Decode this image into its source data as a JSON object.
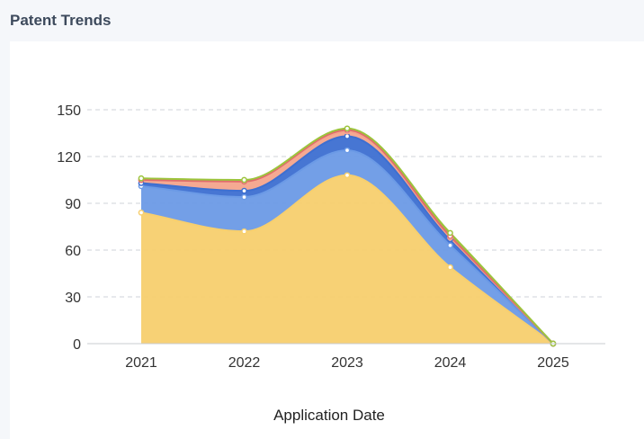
{
  "panel": {
    "title": "Patent Trends"
  },
  "chart_data": {
    "type": "area",
    "stacked": true,
    "smooth": true,
    "title": "",
    "xlabel": "Application Date",
    "ylabel": "",
    "x": [
      "2021",
      "2022",
      "2023",
      "2024",
      "2025"
    ],
    "ylim": [
      0,
      150
    ],
    "yticks": [
      "0",
      "30",
      "60",
      "90",
      "120",
      "150"
    ],
    "grid": true,
    "legend": "none",
    "series": [
      {
        "color": "#f7cf6e",
        "values": [
          84,
          72,
          108,
          49,
          0
        ]
      },
      {
        "color": "#6b9ae6",
        "values": [
          17,
          22,
          16,
          14,
          0
        ]
      },
      {
        "color": "#3d6fd1",
        "values": [
          2,
          4,
          9,
          4,
          0
        ]
      },
      {
        "color": "#f4a48c",
        "values": [
          2,
          6,
          3,
          1,
          0
        ]
      },
      {
        "color": "#e06c6c",
        "values": [
          0,
          0,
          1,
          1,
          0
        ]
      },
      {
        "color": "#9cc43c",
        "values": [
          1,
          1,
          1,
          2,
          0
        ]
      }
    ]
  }
}
